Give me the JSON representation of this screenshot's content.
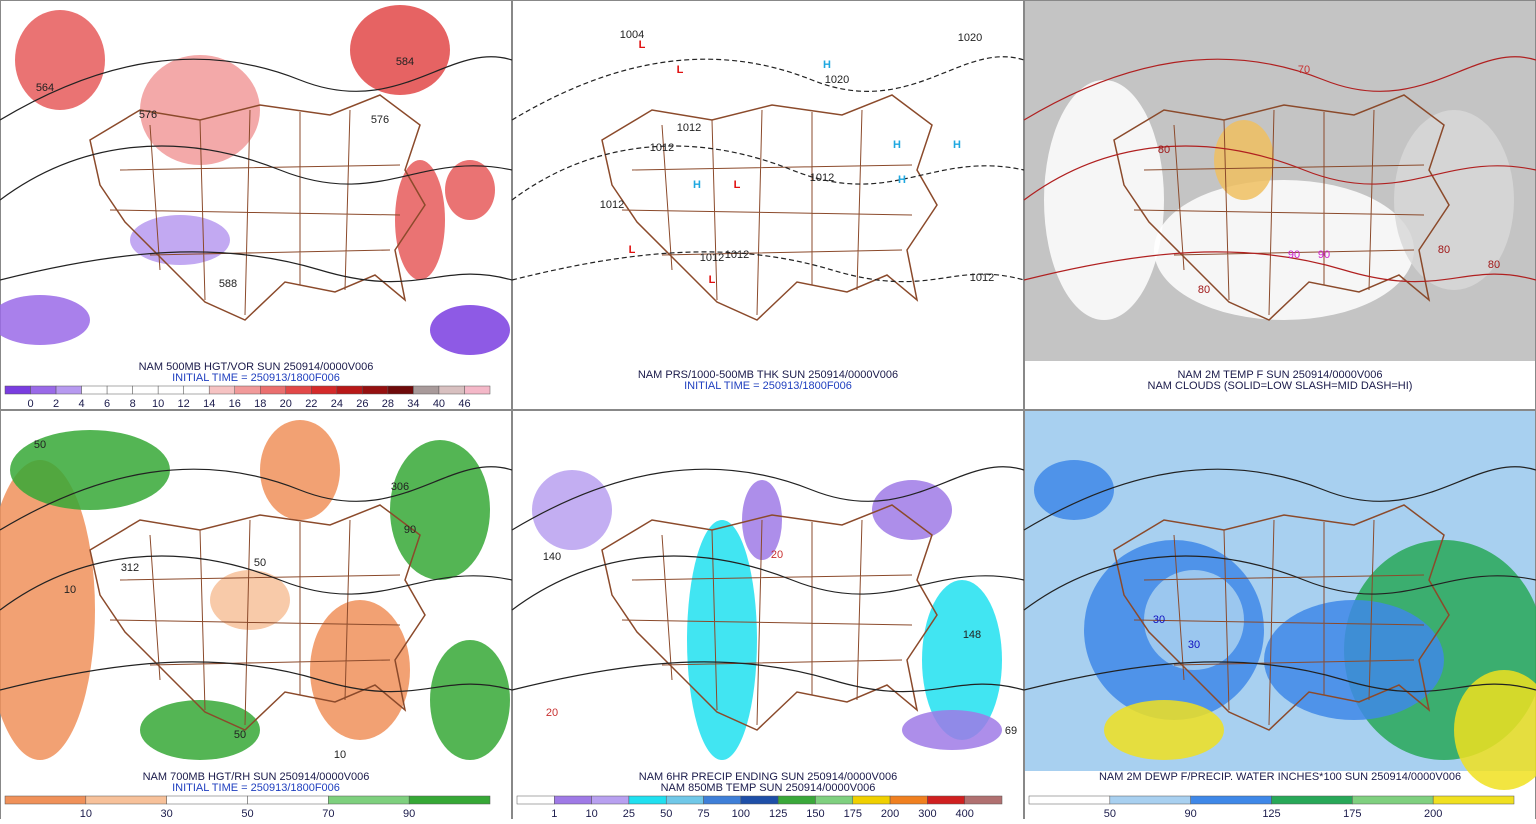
{
  "panels": [
    {
      "captions": [
        {
          "text": "NAM 500MB HGT/VOR SUN 250914/0000V006",
          "color": "#1a1a4a"
        },
        {
          "text": "INITIAL TIME = 250913/1800F006",
          "color": "#1f3fbf"
        }
      ],
      "background": "#ffffff",
      "colorbar": {
        "labels": [
          0,
          2,
          4,
          6,
          8,
          10,
          12,
          14,
          16,
          18,
          20,
          22,
          24,
          26,
          28,
          34,
          40,
          46
        ],
        "colors": [
          "#7a3de0",
          "#9a6ae8",
          "#b79af0",
          "#ffffff",
          "#ffffff",
          "#ffffff",
          "#ffffff",
          "#ffffff",
          "#f6c3c3",
          "#f19a9a",
          "#ea6f6f",
          "#e24848",
          "#d42a2a",
          "#b81818",
          "#951010",
          "#6e0a0a",
          "#a89a9a",
          "#d8c0c0",
          "#f4b8c8"
        ]
      },
      "map_labels": [
        {
          "text": "564",
          "color": "#222222"
        },
        {
          "text": "576",
          "color": "#222222"
        },
        {
          "text": "584",
          "color": "#222222"
        },
        {
          "text": "576",
          "color": "#222222"
        },
        {
          "text": "588",
          "color": "#222222"
        }
      ]
    },
    {
      "captions": [
        {
          "text": "NAM PRS/1000-500MB THK SUN 250914/0000V006",
          "color": "#1a1a4a"
        },
        {
          "text": "INITIAL TIME = 250913/1800F006",
          "color": "#1f3fbf"
        }
      ],
      "background": "#ffffff",
      "map_labels": [
        {
          "text": "L",
          "color": "#e01010"
        },
        {
          "text": "L",
          "color": "#e01010"
        },
        {
          "text": "L",
          "color": "#e01010"
        },
        {
          "text": "L",
          "color": "#e01010"
        },
        {
          "text": "L",
          "color": "#e01010"
        },
        {
          "text": "H",
          "color": "#1fa8e0"
        },
        {
          "text": "H",
          "color": "#1fa8e0"
        },
        {
          "text": "H",
          "color": "#1fa8e0"
        },
        {
          "text": "H",
          "color": "#1fa8e0"
        },
        {
          "text": "H",
          "color": "#1fa8e0"
        },
        {
          "text": "1004",
          "color": "#222222"
        },
        {
          "text": "1012",
          "color": "#222222"
        },
        {
          "text": "1012",
          "color": "#222222"
        },
        {
          "text": "1020",
          "color": "#222222"
        },
        {
          "text": "1020",
          "color": "#222222"
        },
        {
          "text": "1012",
          "color": "#222222"
        },
        {
          "text": "1012",
          "color": "#222222"
        },
        {
          "text": "1012",
          "color": "#222222"
        },
        {
          "text": "1012",
          "color": "#222222"
        },
        {
          "text": "1012",
          "color": "#222222"
        }
      ]
    },
    {
      "captions": [
        {
          "text": "NAM 2M TEMP F SUN 250914/0000V006",
          "color": "#1a1a4a"
        },
        {
          "text": "NAM CLOUDS (SOLID=LOW SLASH=MID DASH=HI)",
          "color": "#1a1a4a"
        }
      ],
      "background": "#c4c4c4",
      "map_labels": [
        {
          "text": "80",
          "color": "#a01818"
        },
        {
          "text": "70",
          "color": "#c83030"
        },
        {
          "text": "80",
          "color": "#a01818"
        },
        {
          "text": "90",
          "color": "#d020d0"
        },
        {
          "text": "90",
          "color": "#d020d0"
        },
        {
          "text": "80",
          "color": "#a01818"
        },
        {
          "text": "80",
          "color": "#a01818"
        }
      ]
    },
    {
      "captions": [
        {
          "text": "NAM 700MB HGT/RH SUN 250914/0000V006",
          "color": "#1a1a4a"
        },
        {
          "text": "INITIAL TIME = 250913/1800F006",
          "color": "#1f3fbf"
        }
      ],
      "background": "#ffffff",
      "colorbar": {
        "labels": [
          10,
          30,
          50,
          70,
          90
        ],
        "colors": [
          "#f0915a",
          "#f7c19a",
          "#ffffff",
          "#ffffff",
          "#7ed07e",
          "#36a836"
        ]
      },
      "map_labels": [
        {
          "text": "50",
          "color": "#222222"
        },
        {
          "text": "50",
          "color": "#222222"
        },
        {
          "text": "10",
          "color": "#222222"
        },
        {
          "text": "10",
          "color": "#222222"
        },
        {
          "text": "312",
          "color": "#222222"
        },
        {
          "text": "306",
          "color": "#222222"
        },
        {
          "text": "50",
          "color": "#222222"
        },
        {
          "text": "90",
          "color": "#222222"
        }
      ]
    },
    {
      "captions": [
        {
          "text": "NAM 6HR PRECIP ENDING SUN 250914/0000V006",
          "color": "#1a1a4a"
        },
        {
          "text": "NAM 850MB TEMP SUN 250914/0000V006",
          "color": "#1a1a4a"
        }
      ],
      "background": "#ffffff",
      "colorbar": {
        "labels": [
          1,
          10,
          25,
          50,
          75,
          100,
          125,
          150,
          175,
          200,
          300,
          400
        ],
        "colors": [
          "#ffffff",
          "#9f7ae6",
          "#b8a0f0",
          "#20e0f0",
          "#70c8e8",
          "#3f7fd8",
          "#1e4fa8",
          "#3aa83a",
          "#7fd07f",
          "#f0d000",
          "#f08020",
          "#d02020",
          "#b07070"
        ]
      },
      "map_labels": [
        {
          "text": "140",
          "color": "#222222"
        },
        {
          "text": "148",
          "color": "#222222"
        },
        {
          "text": "20",
          "color": "#c83030"
        },
        {
          "text": "20",
          "color": "#c83030"
        },
        {
          "text": "69",
          "color": "#222222"
        }
      ]
    },
    {
      "captions": [
        {
          "text": "NAM 2M DEWP F/PRECIP. WATER INCHES*100 SUN 250914/0000V006",
          "color": "#1a1a4a"
        }
      ],
      "background": "#a8d0f0",
      "colorbar": {
        "labels": [
          50,
          90,
          125,
          175,
          200
        ],
        "colors": [
          "#ffffff",
          "#a8d0f0",
          "#3f88e8",
          "#28a858",
          "#7fd07f",
          "#f0e020"
        ]
      },
      "map_labels": [
        {
          "text": "30",
          "color": "#1010c0"
        },
        {
          "text": "30",
          "color": "#1010c0"
        }
      ]
    }
  ]
}
